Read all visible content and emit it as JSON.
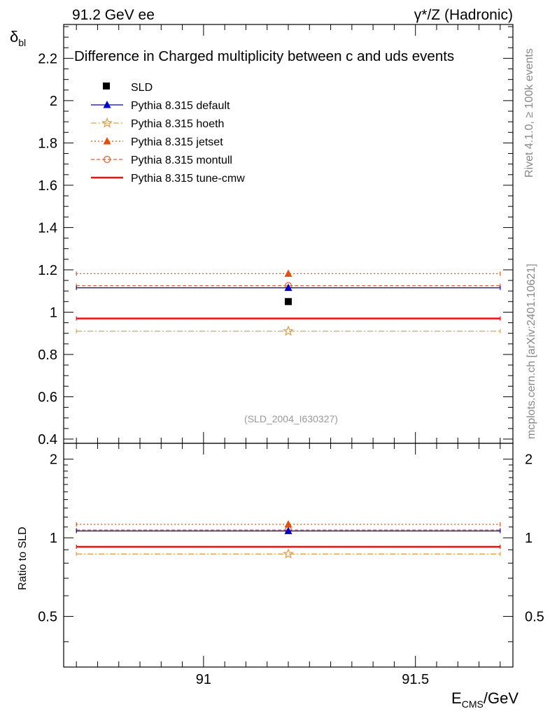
{
  "header": {
    "left": "91.2 GeV ee",
    "right": "γ*/Z (Hadronic)"
  },
  "side_labels": {
    "rivet": "Rivet 4.1.0, ≥ 100k events",
    "mcplots": "mcplots.cern.ch [arXiv:2401.10621]"
  },
  "chart_data": {
    "type": "scatter",
    "title": "Difference in Charged multiplicity between c and uds events",
    "analysis_id": "(SLD_2004_I630327)",
    "xlabel_main": "E",
    "xlabel_sub": "CMS",
    "xlabel_unit": "/GeV",
    "ylabel_main": "δ",
    "ylabel_sub": "bl",
    "xlim": [
      90.67,
      91.73
    ],
    "x_ticks": [
      91,
      91.5
    ],
    "x_tick_labels": [
      "91",
      "91.5"
    ],
    "ylim": [
      0.38,
      2.36
    ],
    "y_ticks": [
      0.4,
      0.6,
      0.8,
      1,
      1.2,
      1.4,
      1.6,
      1.8,
      2,
      2.2
    ],
    "y_tick_labels": [
      "0.4",
      "0.6",
      "0.8",
      "1",
      "1.2",
      "1.4",
      "1.6",
      "1.8",
      "2",
      "2.2"
    ],
    "data": {
      "name": "SLD",
      "x": 91.2,
      "y": 1.05,
      "color": "#000000"
    },
    "series": [
      {
        "name": "Pythia 8.315 default",
        "value": 1.115,
        "ratio": 1.062,
        "color": "#0000cc",
        "dash": "",
        "marker": "triangle",
        "x_range": [
          90.7,
          91.7
        ]
      },
      {
        "name": "Pythia 8.315 hoeth",
        "value": 0.91,
        "ratio": 0.867,
        "color": "#e0a050",
        "dash": "8,3,2,3",
        "marker": "star",
        "x_range": [
          90.7,
          91.7
        ]
      },
      {
        "name": "Pythia 8.315 jetset",
        "value": 1.182,
        "ratio": 1.126,
        "color": "#e05010",
        "dash": "2,3",
        "marker": "triangle",
        "x_range": [
          90.7,
          91.7
        ]
      },
      {
        "name": "Pythia 8.315 montull",
        "value": 1.125,
        "ratio": 1.071,
        "color": "#e06030",
        "dash": "5,3",
        "marker": "circle-open",
        "x_range": [
          90.7,
          91.7
        ]
      },
      {
        "name": "Pythia 8.315 tune-cmw",
        "value": 0.97,
        "ratio": 0.924,
        "color": "#ee1111",
        "dash": "",
        "marker": "none",
        "x_range": [
          90.7,
          91.7
        ]
      }
    ],
    "ratio_panel": {
      "ylabel": "Ratio to SLD",
      "ylim": [
        0.32,
        2.3
      ],
      "y_tick_labels": [
        "0.5",
        "1",
        "2"
      ],
      "y_ticks": [
        0.5,
        1,
        2
      ]
    }
  }
}
